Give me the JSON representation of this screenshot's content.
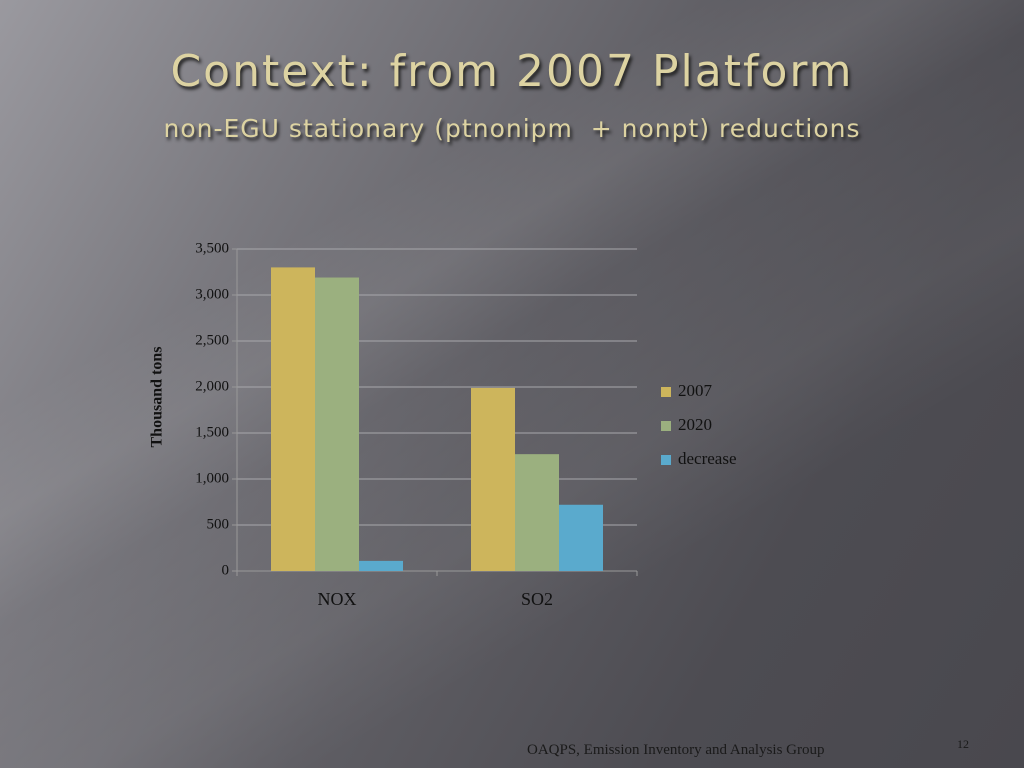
{
  "slide": {
    "title": "Context: from 2007 Platform",
    "subtitle": "non-EGU stationary (ptnonipm  + nonpt) reductions",
    "footer": "OAQPS, Emission Inventory and Analysis Group",
    "page_number": "12"
  },
  "chart_data": {
    "type": "bar",
    "y_label": "Thousand tons",
    "categories": [
      "NOX",
      "SO2"
    ],
    "series": [
      {
        "name": "2007",
        "color": "#cdb55c",
        "values": [
          3300,
          1990
        ]
      },
      {
        "name": "2020",
        "color": "#9bb07f",
        "values": [
          3190,
          1270
        ]
      },
      {
        "name": "decrease",
        "color": "#5aaacd",
        "values": [
          110,
          720
        ]
      }
    ],
    "ylim": [
      0,
      3500
    ],
    "yticks": [
      0,
      500,
      {
        "value": 1000,
        "label": "1,000"
      },
      {
        "value": 1500,
        "label": "1,500"
      },
      {
        "value": 2000,
        "label": "2,000"
      },
      {
        "value": 2500,
        "label": "2,500"
      },
      {
        "value": 3000,
        "label": "3,000"
      },
      {
        "value": 3500,
        "label": "3,500"
      }
    ],
    "grid": true,
    "legend": "right"
  }
}
